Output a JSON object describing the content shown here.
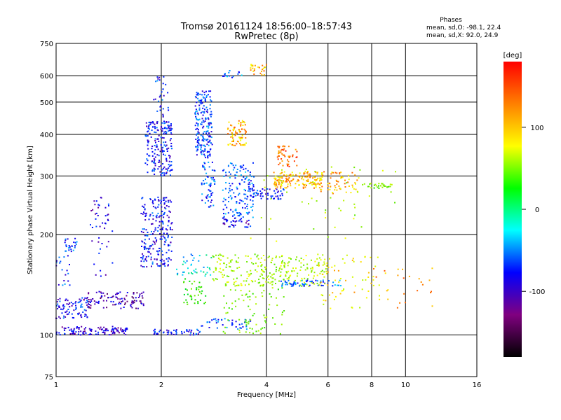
{
  "header": {
    "title_line1": "Tromsø 20161124 18:56:00–18:57:43",
    "title_line2": "RwPretec (8p)",
    "phase_title": "Phases",
    "phase_o": "mean, sd,O: -98.1, 22.4",
    "phase_x": "mean, sd,X:  92.0, 24.9"
  },
  "colorbar": {
    "unit_label": "[deg]",
    "ticks": [
      "100",
      "0",
      "-100"
    ],
    "colors": [
      "#ff0000",
      "#ff8000",
      "#ffff00",
      "#00ff00",
      "#00ffff",
      "#0000ff",
      "#800080",
      "#000000"
    ]
  },
  "chart_data": {
    "type": "scatter",
    "xlabel": "Frequency [MHz]",
    "ylabel": "Stationary phase Virtual Height [km]",
    "xscale": "log",
    "yscale": "log",
    "xlim": [
      1,
      16
    ],
    "ylim": [
      75,
      750
    ],
    "xticks": [
      "1",
      "2",
      "4",
      "6",
      "8",
      "10",
      "16"
    ],
    "yticks": [
      "75",
      "100",
      "200",
      "300",
      "400",
      "500",
      "600",
      "750"
    ],
    "grid": true,
    "clusters": [
      {
        "x": [
          1.0,
          1.6
        ],
        "y": [
          100,
          106
        ],
        "phase": -115,
        "n": 120
      },
      {
        "x": [
          1.9,
          2.6
        ],
        "y": [
          100,
          104
        ],
        "phase": -95,
        "n": 50
      },
      {
        "x": [
          2.6,
          3.6
        ],
        "y": [
          104,
          112
        ],
        "phase": -90,
        "n": 40
      },
      {
        "x": [
          1.0,
          1.25
        ],
        "y": [
          112,
          130
        ],
        "phase": -100,
        "n": 80
      },
      {
        "x": [
          1.2,
          1.8
        ],
        "y": [
          120,
          135
        ],
        "phase": -125,
        "n": 110
      },
      {
        "x": [
          1.0,
          1.1
        ],
        "y": [
          140,
          175
        ],
        "phase": -90,
        "n": 20
      },
      {
        "x": [
          1.05,
          1.15
        ],
        "y": [
          178,
          195
        ],
        "phase": -90,
        "n": 25
      },
      {
        "x": [
          1.25,
          1.45
        ],
        "y": [
          150,
          260
        ],
        "phase": -110,
        "n": 45
      },
      {
        "x": [
          1.75,
          2.15
        ],
        "y": [
          160,
          260
        ],
        "phase": -100,
        "n": 230
      },
      {
        "x": [
          1.8,
          2.15
        ],
        "y": [
          300,
          440
        ],
        "phase": -100,
        "n": 200
      },
      {
        "x": [
          1.9,
          2.1
        ],
        "y": [
          450,
          600
        ],
        "phase": -95,
        "n": 30
      },
      {
        "x": [
          2.5,
          2.8
        ],
        "y": [
          340,
          540
        ],
        "phase": -90,
        "n": 200
      },
      {
        "x": [
          2.6,
          2.85
        ],
        "y": [
          240,
          330
        ],
        "phase": -85,
        "n": 60
      },
      {
        "x": [
          2.2,
          2.8
        ],
        "y": [
          150,
          175
        ],
        "phase": -50,
        "n": 40
      },
      {
        "x": [
          2.3,
          2.7
        ],
        "y": [
          122,
          148
        ],
        "phase": 20,
        "n": 40
      },
      {
        "x": [
          3.1,
          3.5
        ],
        "y": [
          370,
          440
        ],
        "phase": 110,
        "n": 80
      },
      {
        "x": [
          3.0,
          3.4
        ],
        "y": [
          590,
          625
        ],
        "phase": -80,
        "n": 15
      },
      {
        "x": [
          3.6,
          4.0
        ],
        "y": [
          600,
          650
        ],
        "phase": 110,
        "n": 25
      },
      {
        "x": [
          3.0,
          3.7
        ],
        "y": [
          225,
          330
        ],
        "phase": -80,
        "n": 140
      },
      {
        "x": [
          3.0,
          3.6
        ],
        "y": [
          210,
          225
        ],
        "phase": -110,
        "n": 40
      },
      {
        "x": [
          3.5,
          4.5
        ],
        "y": [
          255,
          275
        ],
        "phase": -100,
        "n": 60
      },
      {
        "x": [
          4.2,
          5.8
        ],
        "y": [
          275,
          310
        ],
        "phase": 110,
        "n": 160
      },
      {
        "x": [
          4.3,
          4.9
        ],
        "y": [
          320,
          370
        ],
        "phase": 140,
        "n": 50
      },
      {
        "x": [
          5.6,
          7.3
        ],
        "y": [
          265,
          310
        ],
        "phase": 110,
        "n": 60
      },
      {
        "x": [
          7.5,
          9.2
        ],
        "y": [
          275,
          285
        ],
        "phase": 40,
        "n": 30
      },
      {
        "x": [
          2.8,
          4.0
        ],
        "y": [
          140,
          175
        ],
        "phase": 60,
        "n": 130
      },
      {
        "x": [
          4.0,
          6.0
        ],
        "y": [
          140,
          175
        ],
        "phase": 60,
        "n": 140
      },
      {
        "x": [
          4.4,
          6.6
        ],
        "y": [
          140,
          146
        ],
        "phase": -80,
        "n": 60
      },
      {
        "x": [
          3.0,
          4.5
        ],
        "y": [
          100,
          140
        ],
        "phase": 40,
        "n": 80
      },
      {
        "x": [
          5.5,
          8.5
        ],
        "y": [
          120,
          175
        ],
        "phase": 90,
        "n": 70
      },
      {
        "x": [
          8.0,
          13.0
        ],
        "y": [
          120,
          160
        ],
        "phase": 120,
        "n": 25
      },
      {
        "x": [
          3.5,
          9.5
        ],
        "y": [
          190,
          320
        ],
        "phase": 60,
        "n": 50
      }
    ]
  }
}
